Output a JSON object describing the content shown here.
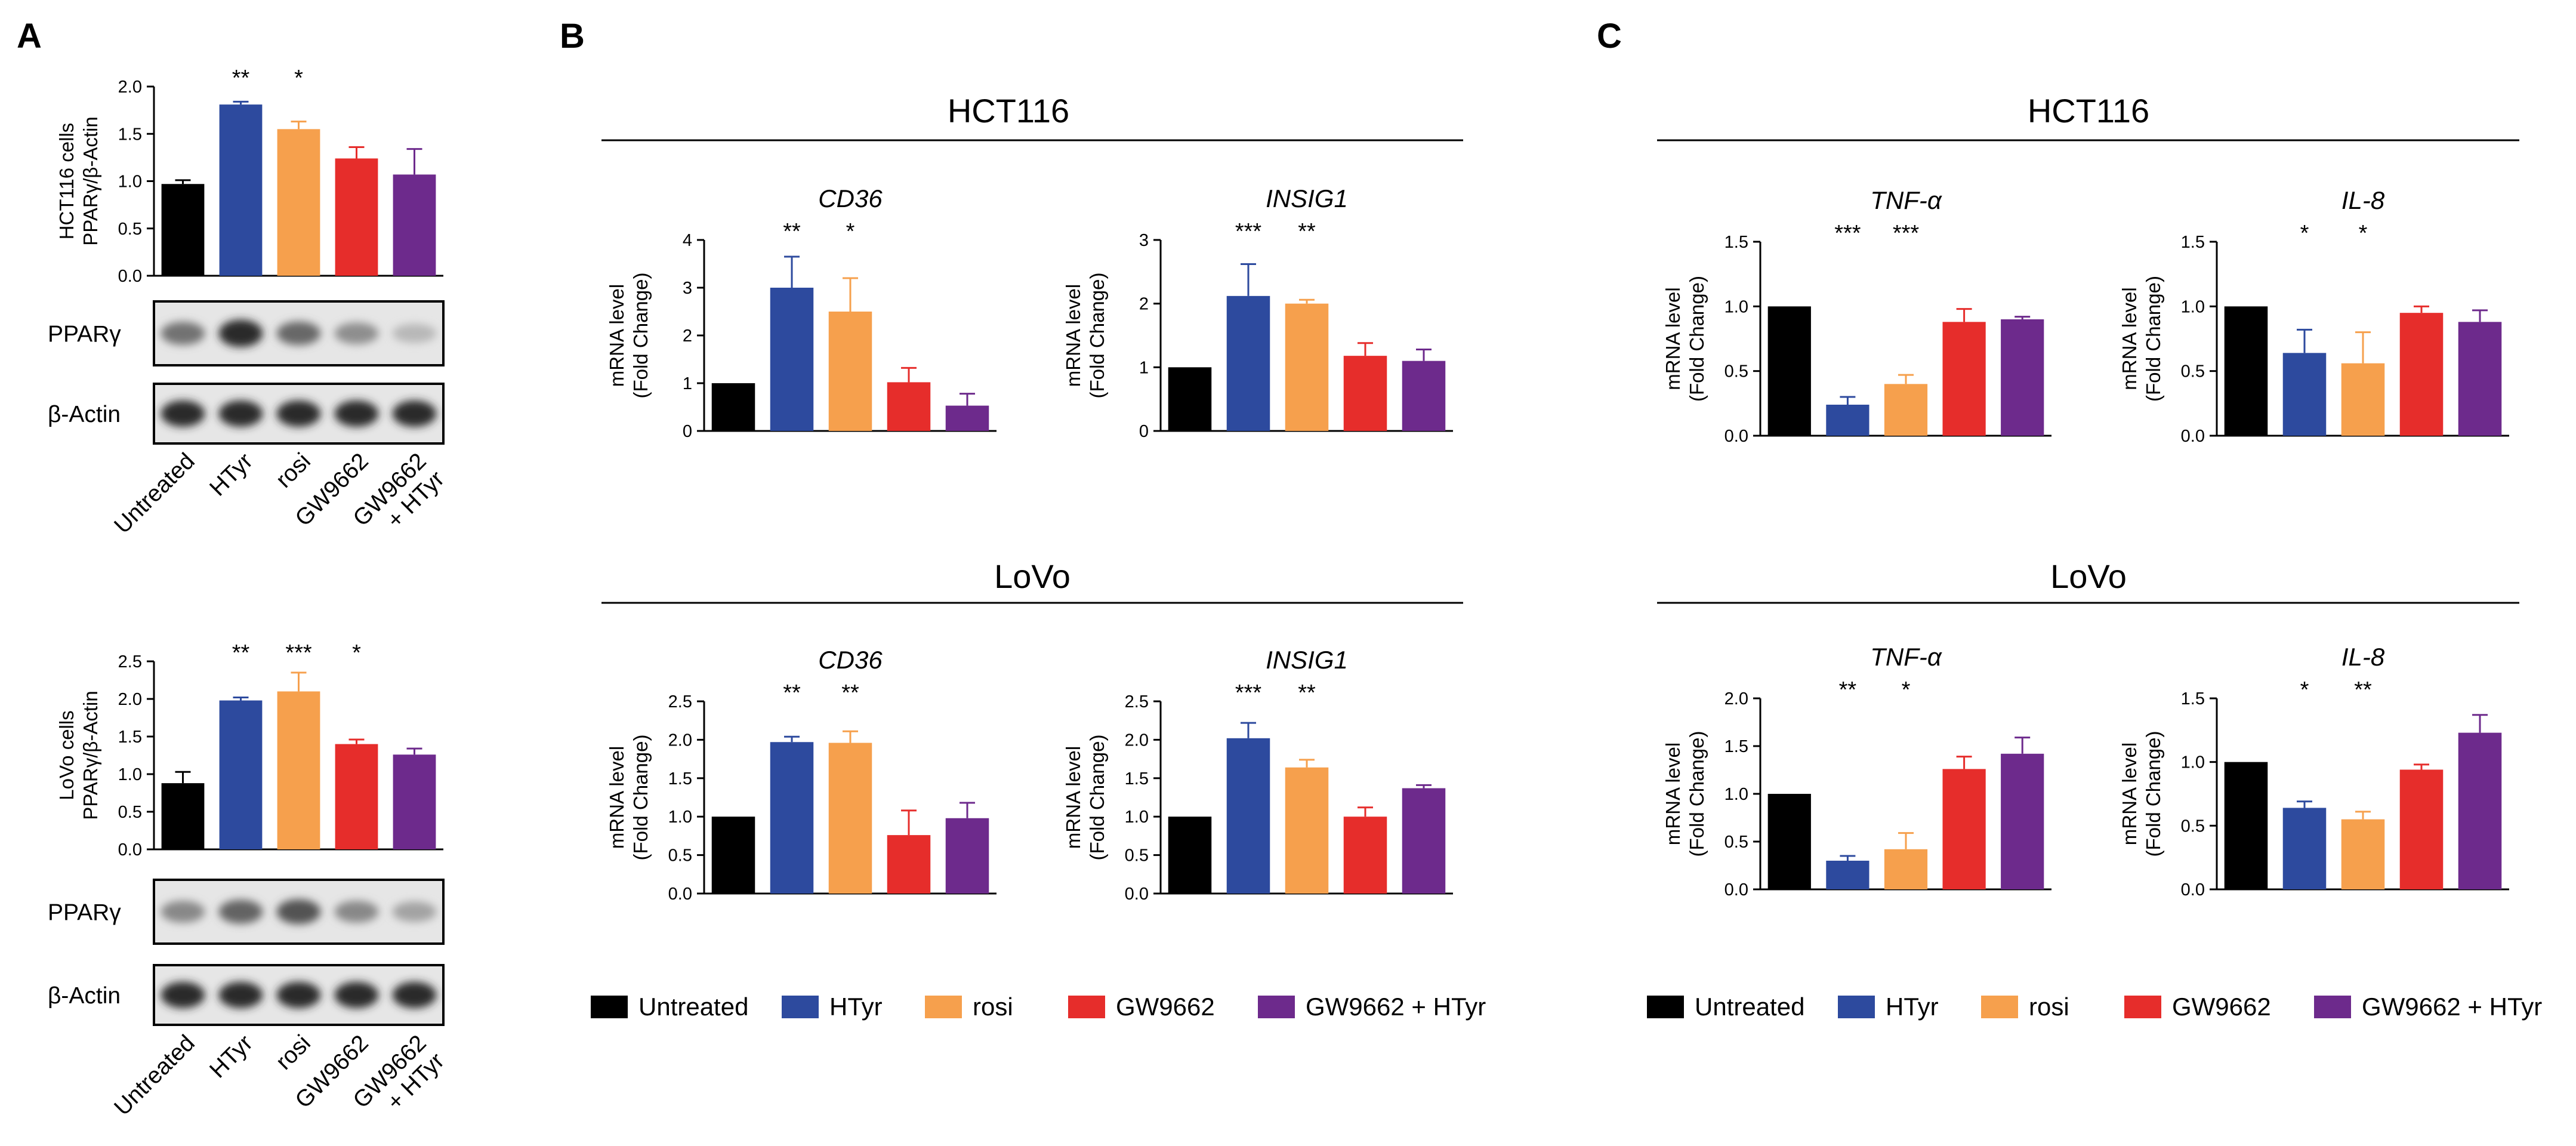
{
  "panels": [
    "A",
    "B",
    "C"
  ],
  "colors": {
    "Untreated": "#000000",
    "HTyr": "#2d4a9e",
    "rosi": "#f6a04d",
    "GW9662": "#e62d2b",
    "GW9662 + HTyr": "#6d2a8c"
  },
  "chart_data": [
    {
      "id": "A-HCT116",
      "panel": "A",
      "type": "bar",
      "title": "",
      "ylabel": [
        "HCT116 cells",
        "PPARγ/β-Actin"
      ],
      "categories": [
        "Untreated",
        "HTyr",
        "rosi",
        "GW9662",
        "GW9662 + HTyr"
      ],
      "values": [
        0.97,
        1.81,
        1.55,
        1.24,
        1.07
      ],
      "errors": [
        0.04,
        0.03,
        0.08,
        0.12,
        0.27
      ],
      "significance": [
        "",
        "**",
        "*",
        "",
        ""
      ],
      "yticks": [
        "0.0",
        "0.5",
        "1.0",
        "1.5",
        "2.0"
      ],
      "ylim": [
        0,
        2.0
      ]
    },
    {
      "id": "A-LoVo",
      "panel": "A",
      "type": "bar",
      "title": "",
      "ylabel": [
        "LoVo cells",
        "PPARγ/β-Actin"
      ],
      "categories": [
        "Untreated",
        "HTyr",
        "rosi",
        "GW9662",
        "GW9662 + HTyr"
      ],
      "values": [
        0.88,
        1.98,
        2.1,
        1.4,
        1.26
      ],
      "errors": [
        0.15,
        0.04,
        0.25,
        0.06,
        0.08
      ],
      "significance": [
        "",
        "**",
        "***",
        "*",
        ""
      ],
      "yticks": [
        "0.0",
        "0.5",
        "1.0",
        "1.5",
        "2.0",
        "2.5"
      ],
      "ylim": [
        0,
        2.5
      ]
    },
    {
      "id": "B-HCT116-CD36",
      "panel": "B",
      "type": "bar",
      "title": "CD36",
      "ylabel": [
        "mRNA level",
        "(Fold Change)"
      ],
      "categories": [
        "Untreated",
        "HTyr",
        "rosi",
        "GW9662",
        "GW9662 + HTyr"
      ],
      "values": [
        1.0,
        3.0,
        2.5,
        1.02,
        0.53
      ],
      "errors": [
        0,
        0.65,
        0.7,
        0.3,
        0.25
      ],
      "significance": [
        "",
        "**",
        "*",
        "",
        ""
      ],
      "yticks": [
        "0",
        "1",
        "2",
        "3",
        "4"
      ],
      "ylim": [
        0,
        4
      ]
    },
    {
      "id": "B-HCT116-INSIG1",
      "panel": "B",
      "type": "bar",
      "title": "INSIG1",
      "ylabel": [
        "mRNA level",
        "(Fold Change)"
      ],
      "categories": [
        "Untreated",
        "HTyr",
        "rosi",
        "GW9662",
        "GW9662 + HTyr"
      ],
      "values": [
        1.0,
        2.12,
        2.0,
        1.18,
        1.1
      ],
      "errors": [
        0,
        0.5,
        0.06,
        0.2,
        0.18
      ],
      "significance": [
        "",
        "***",
        "**",
        "",
        ""
      ],
      "yticks": [
        "0",
        "1",
        "2",
        "3"
      ],
      "ylim": [
        0,
        3
      ]
    },
    {
      "id": "B-LoVo-CD36",
      "panel": "B",
      "type": "bar",
      "title": "CD36",
      "ylabel": [
        "mRNA level",
        "(Fold Change)"
      ],
      "categories": [
        "Untreated",
        "HTyr",
        "rosi",
        "GW9662",
        "GW9662 + HTyr"
      ],
      "values": [
        1.0,
        1.97,
        1.96,
        0.76,
        0.98
      ],
      "errors": [
        0,
        0.07,
        0.15,
        0.32,
        0.2
      ],
      "significance": [
        "",
        "**",
        "**",
        "",
        ""
      ],
      "yticks": [
        "0.0",
        "0.5",
        "1.0",
        "1.5",
        "2.0",
        "2.5"
      ],
      "ylim": [
        0,
        2.5
      ]
    },
    {
      "id": "B-LoVo-INSIG1",
      "panel": "B",
      "type": "bar",
      "title": "INSIG1",
      "ylabel": [
        "mRNA level",
        "(Fold Change)"
      ],
      "categories": [
        "Untreated",
        "HTyr",
        "rosi",
        "GW9662",
        "GW9662 + HTyr"
      ],
      "values": [
        1.0,
        2.02,
        1.64,
        1.0,
        1.37
      ],
      "errors": [
        0,
        0.2,
        0.1,
        0.12,
        0.04
      ],
      "significance": [
        "",
        "***",
        "**",
        "",
        ""
      ],
      "yticks": [
        "0.0",
        "0.5",
        "1.0",
        "1.5",
        "2.0",
        "2.5"
      ],
      "ylim": [
        0,
        2.5
      ]
    },
    {
      "id": "C-HCT116-TNF",
      "panel": "C",
      "type": "bar",
      "title": "TNF-α",
      "ylabel": [
        "mRNA level",
        "(Fold Change)"
      ],
      "categories": [
        "Untreated",
        "HTyr",
        "rosi",
        "GW9662",
        "GW9662 + HTyr"
      ],
      "values": [
        1.0,
        0.24,
        0.4,
        0.88,
        0.9
      ],
      "errors": [
        0,
        0.06,
        0.07,
        0.1,
        0.02
      ],
      "significance": [
        "",
        "***",
        "***",
        "",
        ""
      ],
      "yticks": [
        "0.0",
        "0.5",
        "1.0",
        "1.5"
      ],
      "ylim": [
        0,
        1.5
      ]
    },
    {
      "id": "C-HCT116-IL8",
      "panel": "C",
      "type": "bar",
      "title": "IL-8",
      "ylabel": [
        "mRNA level",
        "(Fold Change)"
      ],
      "categories": [
        "Untreated",
        "HTyr",
        "rosi",
        "GW9662",
        "GW9662 + HTyr"
      ],
      "values": [
        1.0,
        0.64,
        0.56,
        0.95,
        0.88
      ],
      "errors": [
        0,
        0.18,
        0.24,
        0.05,
        0.09
      ],
      "significance": [
        "",
        "*",
        "*",
        "",
        ""
      ],
      "yticks": [
        "0.0",
        "0.5",
        "1.0",
        "1.5"
      ],
      "ylim": [
        0,
        1.5
      ]
    },
    {
      "id": "C-LoVo-TNF",
      "panel": "C",
      "type": "bar",
      "title": "TNF-α",
      "ylabel": [
        "mRNA level",
        "(Fold Change)"
      ],
      "categories": [
        "Untreated",
        "HTyr",
        "rosi",
        "GW9662",
        "GW9662 + HTyr"
      ],
      "values": [
        1.0,
        0.3,
        0.42,
        1.26,
        1.42
      ],
      "errors": [
        0,
        0.05,
        0.17,
        0.13,
        0.17
      ],
      "significance": [
        "",
        "**",
        "*",
        "",
        ""
      ],
      "yticks": [
        "0.0",
        "0.5",
        "1.0",
        "1.5",
        "2.0"
      ],
      "ylim": [
        0,
        2.0
      ]
    },
    {
      "id": "C-LoVo-IL8",
      "panel": "C",
      "type": "bar",
      "title": "IL-8",
      "ylabel": [
        "mRNA level",
        "(Fold Change)"
      ],
      "categories": [
        "Untreated",
        "HTyr",
        "rosi",
        "GW9662",
        "GW9662 + HTyr"
      ],
      "values": [
        1.0,
        0.64,
        0.55,
        0.94,
        1.23
      ],
      "errors": [
        0,
        0.05,
        0.06,
        0.04,
        0.14
      ],
      "significance": [
        "",
        "*",
        "**",
        "",
        ""
      ],
      "yticks": [
        "0.0",
        "0.5",
        "1.0",
        "1.5"
      ],
      "ylim": [
        0,
        1.5
      ]
    }
  ],
  "group_titles": [
    {
      "id": "B-HCT116",
      "text": "HCT116"
    },
    {
      "id": "B-LoVo",
      "text": "LoVo"
    },
    {
      "id": "C-HCT116",
      "text": "HCT116"
    },
    {
      "id": "C-LoVo",
      "text": "LoVo"
    }
  ],
  "blots": {
    "ppar_label": "PPARγ",
    "actin_label": "β-Actin",
    "ppar_hct_intensity": [
      0.55,
      0.9,
      0.6,
      0.42,
      0.22
    ],
    "ppar_lovo_intensity": [
      0.45,
      0.62,
      0.7,
      0.45,
      0.32
    ],
    "actin_intensity": [
      0.9,
      0.9,
      0.9,
      0.9,
      0.9
    ]
  },
  "condition_labels": [
    "Untreated",
    "HTyr",
    "rosi",
    "GW9662",
    "GW9662",
    "+ HTyr"
  ],
  "legend": [
    "Untreated",
    "HTyr",
    "rosi",
    "GW9662",
    "GW9662 + HTyr"
  ]
}
